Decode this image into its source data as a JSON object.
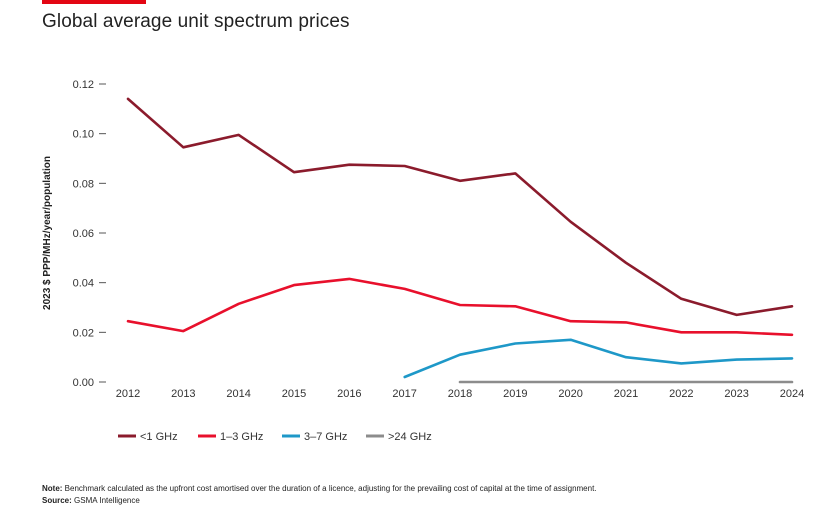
{
  "colors": {
    "accent": "#e30613"
  },
  "page": {
    "title": "Global average unit spectrum prices"
  },
  "note": {
    "note_label": "Note:",
    "note_text": " Benchmark calculated as the upfront cost amortised over the duration of a licence, adjusting for the prevailing cost of capital at the time of assignment.",
    "source_label": "Source:",
    "source_text": " GSMA Intelligence"
  },
  "chart_data": {
    "type": "line",
    "title": "Global average unit spectrum prices",
    "xlabel": "",
    "ylabel": "2023 $ PPP/MHz/year/population",
    "ylim": [
      0,
      0.12
    ],
    "yticks": [
      "0.00",
      "0.02",
      "0.04",
      "0.06",
      "0.08",
      "0.10",
      "0.12"
    ],
    "ytick_values": [
      0,
      0.02,
      0.04,
      0.06,
      0.08,
      0.1,
      0.12
    ],
    "x": [
      "2012",
      "2013",
      "2014",
      "2015",
      "2016",
      "2017",
      "2018",
      "2019",
      "2020",
      "2021",
      "2022",
      "2023",
      "2024"
    ],
    "grid": false,
    "legend_position": "bottom-left",
    "series": [
      {
        "name": "<1 GHz",
        "color": "#8b1b2c",
        "values": [
          0.114,
          0.0945,
          0.0995,
          0.0845,
          0.0875,
          0.087,
          0.081,
          0.084,
          0.0645,
          0.048,
          0.0335,
          0.027,
          0.0305
        ]
      },
      {
        "name": "1–3 GHz",
        "color": "#e8102c",
        "values": [
          0.0245,
          0.0205,
          0.0315,
          0.039,
          0.0415,
          0.0375,
          0.031,
          0.0305,
          0.0245,
          0.024,
          0.02,
          0.02,
          0.019
        ]
      },
      {
        "name": "3–7 GHz",
        "color": "#1e98c8",
        "values": [
          null,
          null,
          null,
          null,
          null,
          0.002,
          0.011,
          0.0155,
          0.017,
          0.01,
          0.0075,
          0.009,
          0.0095
        ]
      },
      {
        "name": ">24 GHz",
        "color": "#8c8c8c",
        "values": [
          null,
          null,
          null,
          null,
          null,
          null,
          0.0,
          0.0,
          0.0,
          0.0,
          0.0,
          0.0,
          0.0
        ]
      }
    ]
  }
}
